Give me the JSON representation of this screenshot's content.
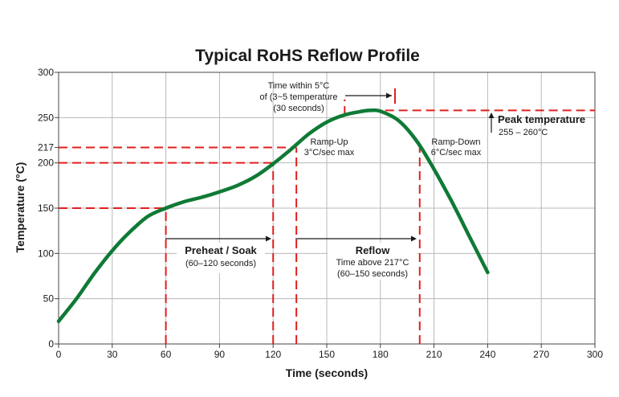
{
  "chart_data": {
    "type": "line",
    "title": "Typical RoHS Reflow Profile",
    "xlabel": "Time (seconds)",
    "ylabel": "Temperature (°C)",
    "xlim": [
      0,
      300
    ],
    "ylim": [
      0,
      300
    ],
    "x_ticks": [
      0,
      30,
      60,
      90,
      120,
      150,
      180,
      210,
      240,
      270,
      300
    ],
    "y_ticks": [
      0,
      50,
      100,
      150,
      200,
      250,
      300
    ],
    "y_ticks_special": [
      217
    ],
    "grid": true,
    "series": [
      {
        "color": "#0f7a35",
        "x": [
          0,
          10,
          20,
          30,
          40,
          50,
          60,
          70,
          80,
          90,
          100,
          110,
          120,
          130,
          140,
          150,
          160,
          170,
          175,
          180,
          190,
          200,
          210,
          220,
          230,
          240
        ],
        "y": [
          25,
          50,
          78,
          103,
          124,
          141,
          150,
          157,
          162,
          168,
          175,
          185,
          199,
          215,
          232,
          245,
          253,
          257,
          258,
          257,
          247,
          225,
          193,
          157,
          118,
          79
        ]
      }
    ],
    "reference_lines": [
      {
        "axis": "y",
        "value": 150,
        "from": 0,
        "to": 60
      },
      {
        "axis": "y",
        "value": 200,
        "from": 0,
        "to": 120
      },
      {
        "axis": "y",
        "value": 217,
        "from": 0,
        "to": 133
      },
      {
        "axis": "y",
        "value": 258,
        "from": 175,
        "to": 300
      },
      {
        "axis": "x",
        "value": 60,
        "from": 0,
        "to": 150
      },
      {
        "axis": "x",
        "value": 120,
        "from": 0,
        "to": 200
      },
      {
        "axis": "x",
        "value": 133,
        "from": 0,
        "to": 217
      },
      {
        "axis": "x",
        "value": 160,
        "from": 253,
        "to": 270
      },
      {
        "axis": "x",
        "value": 202,
        "from": 0,
        "to": 217
      }
    ],
    "annotations": {
      "time_within": [
        "Time within 5°C",
        "of (3~5 temperature",
        "(30 seconds)"
      ],
      "ramp_up": [
        "Ramp-Up",
        "3°C/sec max"
      ],
      "ramp_down": [
        "Ramp-Down",
        "6°C/sec max"
      ],
      "peak_title": "Peak temperature",
      "peak_range": "255 – 260°C",
      "preheat_title": "Preheat / Soak",
      "preheat_range": "(60–120 seconds)",
      "reflow_title": "Reflow",
      "reflow_line1": "Time above 217°C",
      "reflow_line2": "(60–150 seconds)"
    }
  }
}
